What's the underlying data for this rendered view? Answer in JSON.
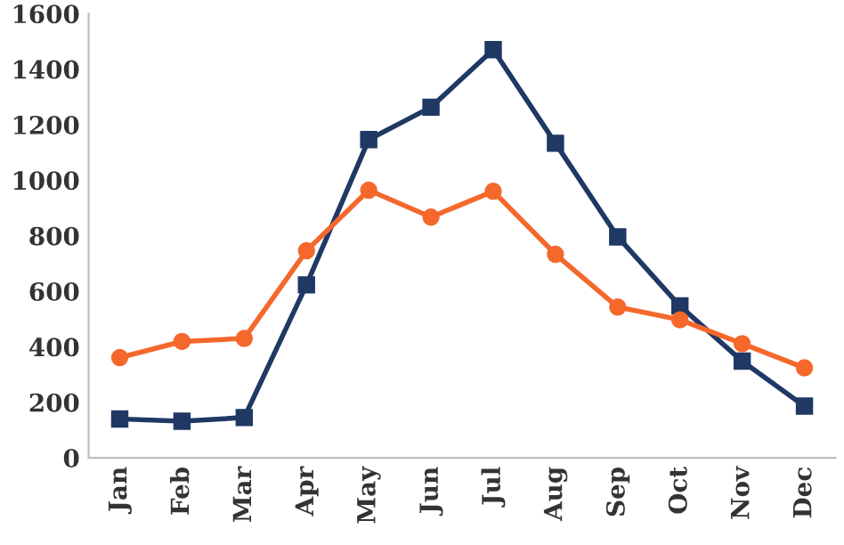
{
  "chart_data": {
    "type": "line",
    "categories": [
      "Jan",
      "Feb",
      "Mar",
      "Apr",
      "May",
      "Jun",
      "Jul",
      "Aug",
      "Sep",
      "Oct",
      "Nov",
      "Dec"
    ],
    "series": [
      {
        "color": "#1f3864",
        "marker": "square",
        "values": [
          140,
          132,
          145,
          623,
          1146,
          1263,
          1470,
          1133,
          796,
          547,
          348,
          186
        ]
      },
      {
        "color": "#f4682c",
        "marker": "circle",
        "values": [
          361,
          419,
          430,
          746,
          964,
          867,
          960,
          733,
          543,
          497,
          411,
          324
        ]
      }
    ],
    "ylim": [
      0,
      1600
    ],
    "yticks": [
      0,
      200,
      400,
      600,
      800,
      1000,
      1200,
      1400,
      1600
    ],
    "grid": false,
    "line_style": "solid"
  }
}
